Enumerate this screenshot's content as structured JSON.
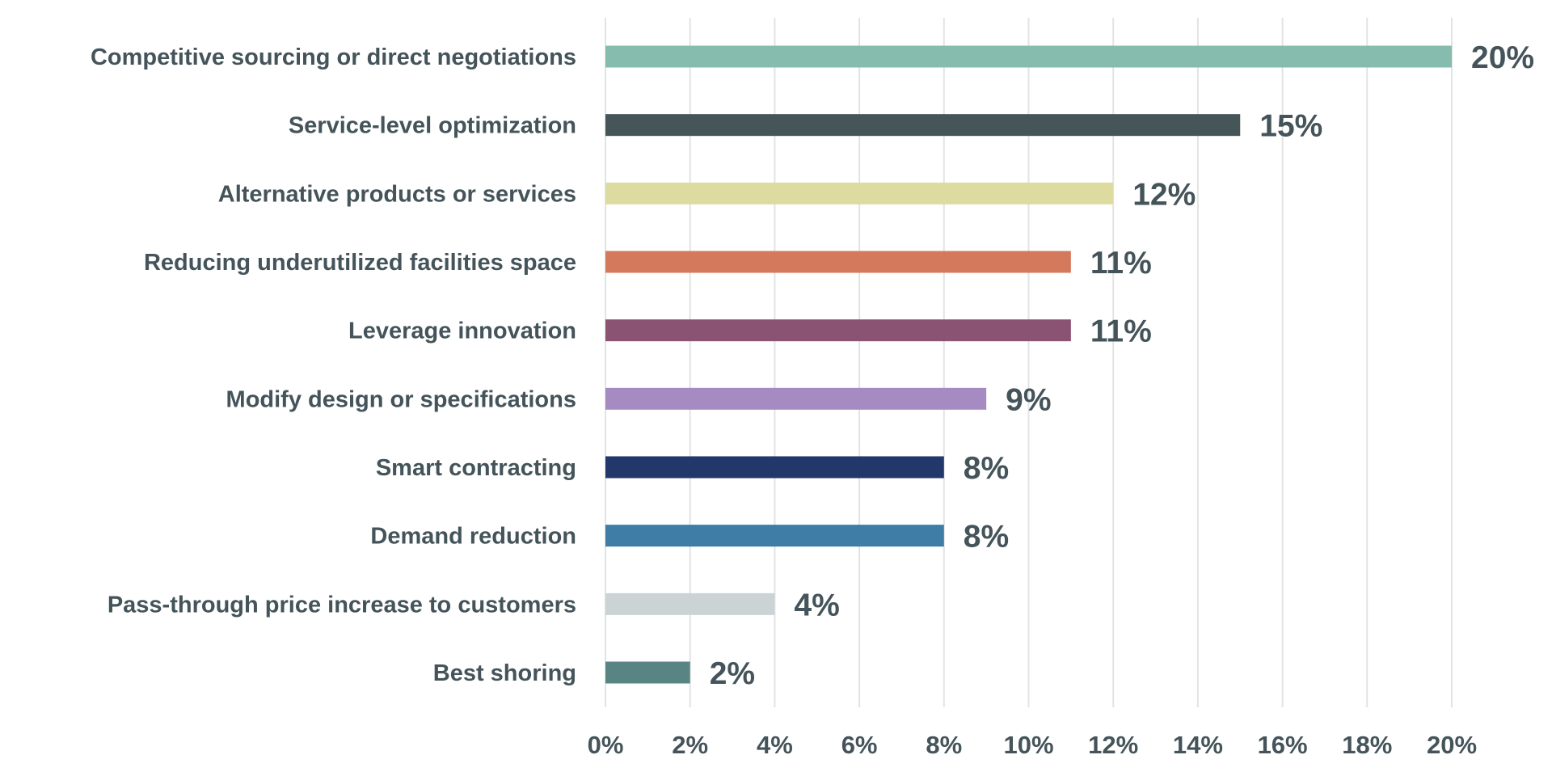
{
  "chart_data": {
    "type": "bar",
    "orientation": "horizontal",
    "categories": [
      "Competitive sourcing or direct negotiations",
      "Service-level optimization",
      "Alternative products or services",
      "Reducing underutilized facilities space",
      "Leverage innovation",
      "Modify design or specifications",
      "Smart contracting",
      "Demand reduction",
      "Pass-through price increase to customers",
      "Best shoring"
    ],
    "values": [
      20,
      15,
      12,
      11,
      11,
      9,
      8,
      8,
      4,
      2
    ],
    "data_labels": [
      "20%",
      "15%",
      "12%",
      "11%",
      "11%",
      "9%",
      "8%",
      "8%",
      "4%",
      "2%"
    ],
    "colors": [
      "#85bcae",
      "#465558",
      "#dddb9f",
      "#d4795c",
      "#8a5273",
      "#a68ac2",
      "#22376a",
      "#3f7ca6",
      "#cbd3d5",
      "#588583"
    ],
    "xlim": [
      0,
      20
    ],
    "x_ticks": [
      0,
      2,
      4,
      6,
      8,
      10,
      12,
      14,
      16,
      18,
      20
    ],
    "x_tick_labels": [
      "0%",
      "2%",
      "4%",
      "6%",
      "8%",
      "10%",
      "12%",
      "14%",
      "16%",
      "18%",
      "20%"
    ],
    "grid": "vertical",
    "title": "",
    "xlabel": "",
    "ylabel": ""
  }
}
